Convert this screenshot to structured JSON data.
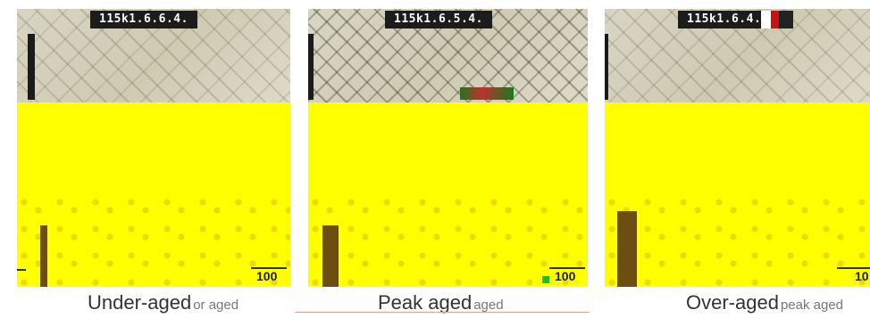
{
  "panels": [
    {
      "label": "115k1.6.6.4.",
      "scale": "100",
      "caption": "Under-aged"
    },
    {
      "label": "115k1.6.5.4.",
      "scale": "100",
      "caption": "Peak aged"
    },
    {
      "label": "115k1.6.4.2",
      "scale": "10",
      "caption": "Over-aged"
    }
  ],
  "ghost_captions": [
    "or aged",
    "aged",
    "peak aged"
  ],
  "colors": {
    "highlight": "#ffff00",
    "bar": "#6b4e10",
    "label_bg": "#1c1c1c"
  }
}
